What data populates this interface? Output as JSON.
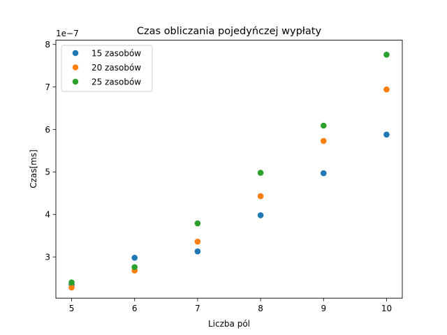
{
  "chart_data": {
    "type": "scatter",
    "title": "Czas obliczania pojedyńczej wypłaty",
    "xlabel": "Liczba pól",
    "ylabel": "Czas[ms]",
    "y_offset_label": "1e−7",
    "xlim": [
      4.75,
      10.25
    ],
    "ylim": [
      2.03,
      8.1
    ],
    "xticks": [
      "5",
      "6",
      "7",
      "8",
      "9",
      "10"
    ],
    "yticks": [
      "3",
      "4",
      "5",
      "6",
      "7",
      "8"
    ],
    "xtick_values": [
      5,
      6,
      7,
      8,
      9,
      10
    ],
    "ytick_values": [
      3,
      4,
      5,
      6,
      7,
      8
    ],
    "grid": false,
    "legend_position": "upper-left",
    "x": [
      5,
      6,
      7,
      8,
      9,
      10
    ],
    "series": [
      {
        "name": "15 zasobów",
        "color": "#1f77b4",
        "values": [
          2.35,
          2.98,
          3.13,
          3.98,
          4.97,
          5.88
        ]
      },
      {
        "name": "20 zasobów",
        "color": "#ff7f0e",
        "values": [
          2.28,
          2.68,
          3.36,
          4.43,
          5.73,
          6.94
        ]
      },
      {
        "name": "25 zasobów",
        "color": "#2ca02c",
        "values": [
          2.4,
          2.76,
          3.79,
          4.98,
          6.09,
          7.76
        ]
      }
    ]
  }
}
